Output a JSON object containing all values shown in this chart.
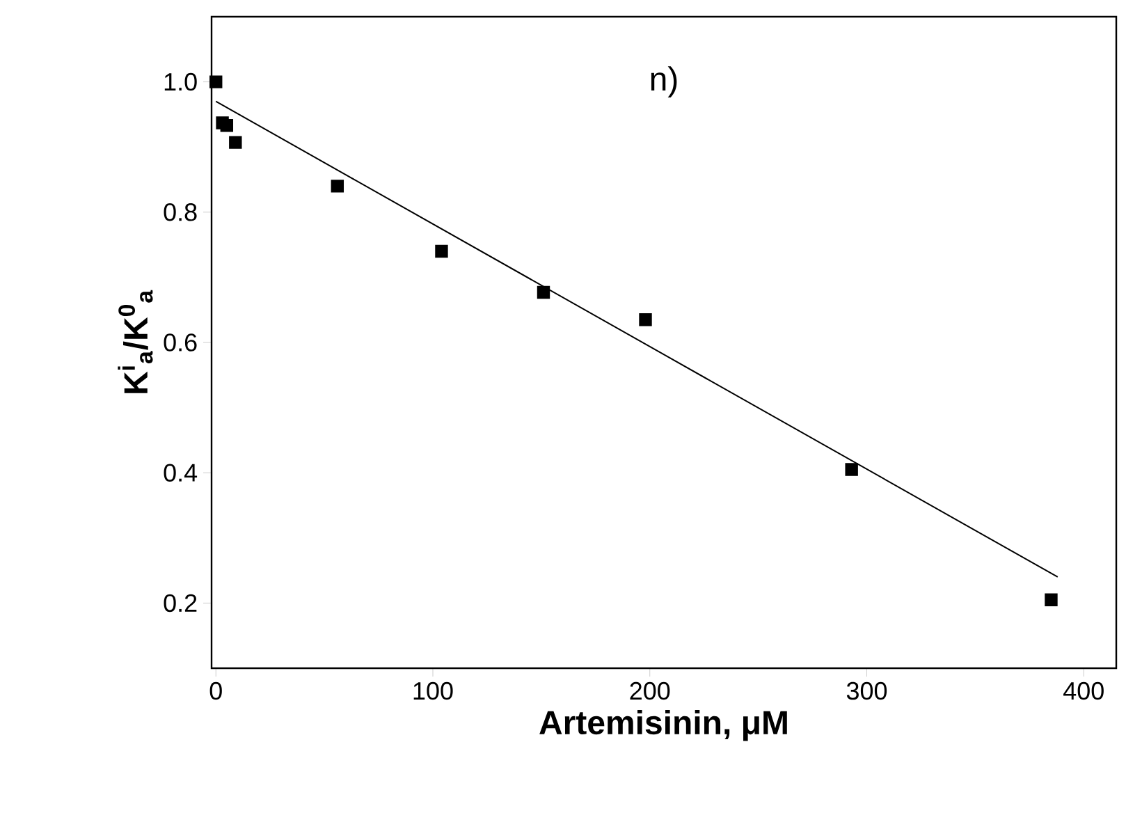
{
  "chart_data": {
    "type": "scatter",
    "xlabel": "Artemisinin, μM",
    "ylabel": "K$^{i}$$_{a}$/K$^{0}$$_{a}$",
    "annotations": [
      "n)"
    ],
    "xlim": [
      -2,
      415
    ],
    "ylim": [
      0.1,
      1.1
    ],
    "xticks": [
      0,
      100,
      200,
      300,
      400
    ],
    "yticks": [
      0.2,
      0.4,
      0.6,
      0.8,
      {
        "value": 1.0,
        "label": "1.0"
      }
    ],
    "grid": false,
    "series": [
      {
        "color": "#000000",
        "marker": "square",
        "x": [
          0,
          3,
          5,
          9,
          56,
          104,
          151,
          198,
          293,
          385
        ],
        "values": [
          1.0,
          0.937,
          0.933,
          0.907,
          0.84,
          0.74,
          0.677,
          0.635,
          0.405,
          0.205
        ]
      },
      {
        "type": "line",
        "marker": "none",
        "color": "#000000",
        "x": [
          0,
          388
        ],
        "values": [
          0.97,
          0.24
        ]
      }
    ]
  }
}
